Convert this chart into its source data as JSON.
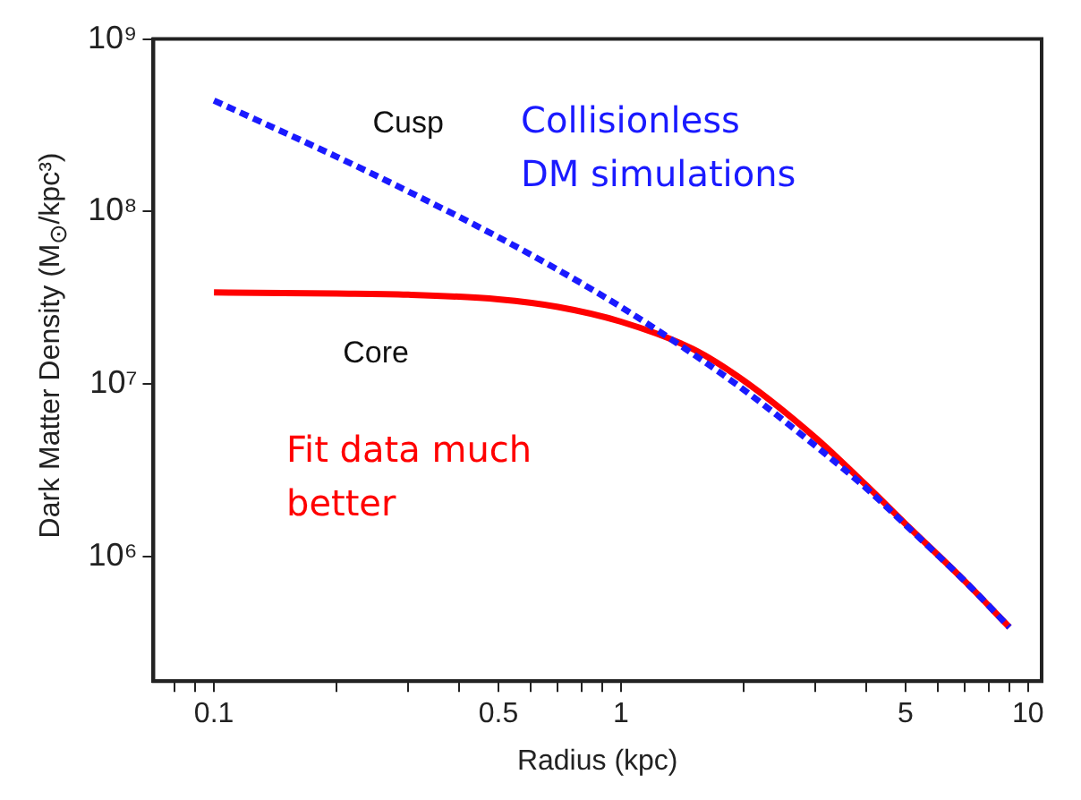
{
  "chart_data": {
    "type": "line",
    "xlabel": "Radius (kpc)",
    "ylabel": "Dark Matter Density (M$_{⊙}$/kpc³)",
    "x": [
      0.1,
      0.2,
      0.3,
      0.5,
      0.7,
      1,
      1.5,
      2,
      3,
      4,
      5,
      7,
      9
    ],
    "series": [
      {
        "name": "Cusp",
        "color": "#1a1aff",
        "line_style": "dashed",
        "values": [
          440000000,
          208000000,
          131000000,
          71000000,
          46000000,
          28000000,
          15000000,
          9300000,
          4400000,
          2500000,
          1530000,
          720000,
          390000
        ]
      },
      {
        "name": "Core",
        "color": "#ff0000",
        "line_style": "solid",
        "values": [
          34000000,
          33500000,
          33000000,
          31000000,
          28000000,
          23000000,
          16000000,
          10500000,
          4900000,
          2600000,
          1550000,
          720000,
          390000
        ]
      }
    ],
    "log": "xy",
    "xlim": [
      0.071,
      10.8
    ],
    "ylim": [
      190000,
      1000000000
    ],
    "xticks": [
      0.1,
      0.5,
      1,
      5,
      10,
      {
        "value": 0.08,
        "label": null
      },
      {
        "value": 0.09,
        "label": null
      },
      {
        "value": 0.2,
        "label": null
      },
      {
        "value": 0.3,
        "label": null
      },
      {
        "value": 0.4,
        "label": null
      },
      {
        "value": 0.6,
        "label": null
      },
      {
        "value": 0.7,
        "label": null
      },
      {
        "value": 0.8,
        "label": null
      },
      {
        "value": 0.9,
        "label": null
      },
      {
        "value": 2,
        "label": null
      },
      {
        "value": 3,
        "label": null
      },
      {
        "value": 4,
        "label": null
      },
      {
        "value": 6,
        "label": null
      },
      {
        "value": 7,
        "label": null
      },
      {
        "value": 8,
        "label": null
      },
      {
        "value": 9,
        "label": null
      }
    ],
    "yticks": [
      {
        "value": 1000000,
        "label": "10⁶"
      },
      {
        "value": 10000000,
        "label": "10⁷"
      },
      {
        "value": 100000000,
        "label": "10⁸"
      },
      {
        "value": 1000000000,
        "label": "10⁹"
      }
    ],
    "annotations": [
      "Collisionless DM simulations",
      "Fit data much better"
    ],
    "grid": false,
    "legend": false,
    "marker": "none"
  }
}
